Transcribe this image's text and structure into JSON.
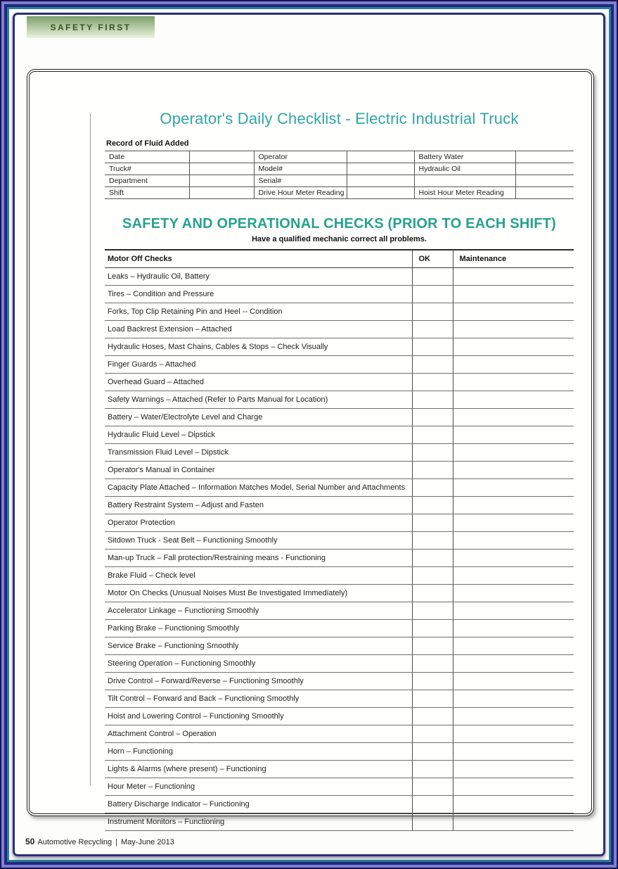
{
  "badge": {
    "label": "SAFETY FIRST"
  },
  "document": {
    "title": "Operator's Daily Checklist - Electric Industrial Truck"
  },
  "fluid_table": {
    "heading": "Record of Fluid Added",
    "rows": [
      [
        "Date",
        "",
        "Operator",
        "",
        "Battery Water",
        ""
      ],
      [
        "Truck#",
        "",
        "Model#",
        "",
        "Hydraulic Oil",
        ""
      ],
      [
        "Department",
        "",
        "Serial#",
        "",
        "",
        ""
      ],
      [
        "Shift",
        "",
        "Drive Hour Meter Reading",
        "",
        "Hoist Hour Meter Reading",
        ""
      ]
    ]
  },
  "checks_section": {
    "heading": "SAFETY AND OPERATIONAL CHECKS (PRIOR TO EACH SHIFT)",
    "subheading": "Have a qualified mechanic correct all problems.",
    "table": {
      "headers": [
        "Motor Off Checks",
        "OK",
        "Maintenance"
      ],
      "rows": [
        "Leaks – Hydraulic Oil, Battery",
        "Tires – Condition and Pressure",
        "Forks, Top Clip Retaining Pin and Heel -- Condition",
        "Load Backrest Extension – Attached",
        "Hydraulic Hoses, Mast Chains, Cables & Stops – Check Visually",
        "Finger Guards – Attached",
        "Overhead Guard – Attached",
        "Safety Warnings – Attached (Refer to Parts Manual for Location)",
        "Battery – Water/Electrolyte Level and Charge",
        "Hydraulic Fluid Level – Dipstick",
        "Transmission Fluid Level – Dipstick",
        "Operator's Manual in Container",
        "Capacity Plate Attached – Information Matches Model, Serial Number and Attachments",
        "Battery Restraint System – Adjust and Fasten",
        "Operator Protection",
        "Sitdown Truck - Seat Belt – Functioning Smoothly",
        "Man-up Truck – Fall protection/Restraining means - Functioning",
        "Brake Fluid – Check level",
        "Motor On Checks (Unusual Noises Must Be Investigated Immediately)",
        "Accelerator Linkage – Functioning Smoothly",
        "Parking Brake – Functioning Smoothly",
        "Service Brake – Functioning Smoothly",
        "Steering Operation – Functioning Smoothly",
        "Drive Control – Forward/Reverse – Functioning Smoothly",
        "Tilt Control – Forward and Back – Functioning Smoothly",
        "Hoist and Lowering Control – Functioning Smoothly",
        "Attachment Control – Operation",
        "Horn – Functioning",
        "Lights & Alarms (where present) – Functioning",
        "Hour Meter – Functioning",
        "Battery Discharge Indicator – Functioning",
        "Instrument Monitors – Functioning"
      ]
    }
  },
  "footer": {
    "page_number": "50",
    "magazine": "Automotive Recycling",
    "separator": "|",
    "issue": "May-June 2013"
  },
  "colors": {
    "title_teal": "#2fa6a3",
    "heading_green": "#26a28e",
    "badge_green_top": "#7d9f6e",
    "badge_green_bottom": "#ecf2e3",
    "badge_text": "#3c5226",
    "frame_outer_dark": "#1a1350",
    "frame_purple": "#7c81d6",
    "frame_navy": "#20297a",
    "frame_teal": "#2c7f96",
    "page_border_navy": "#2b3173"
  }
}
